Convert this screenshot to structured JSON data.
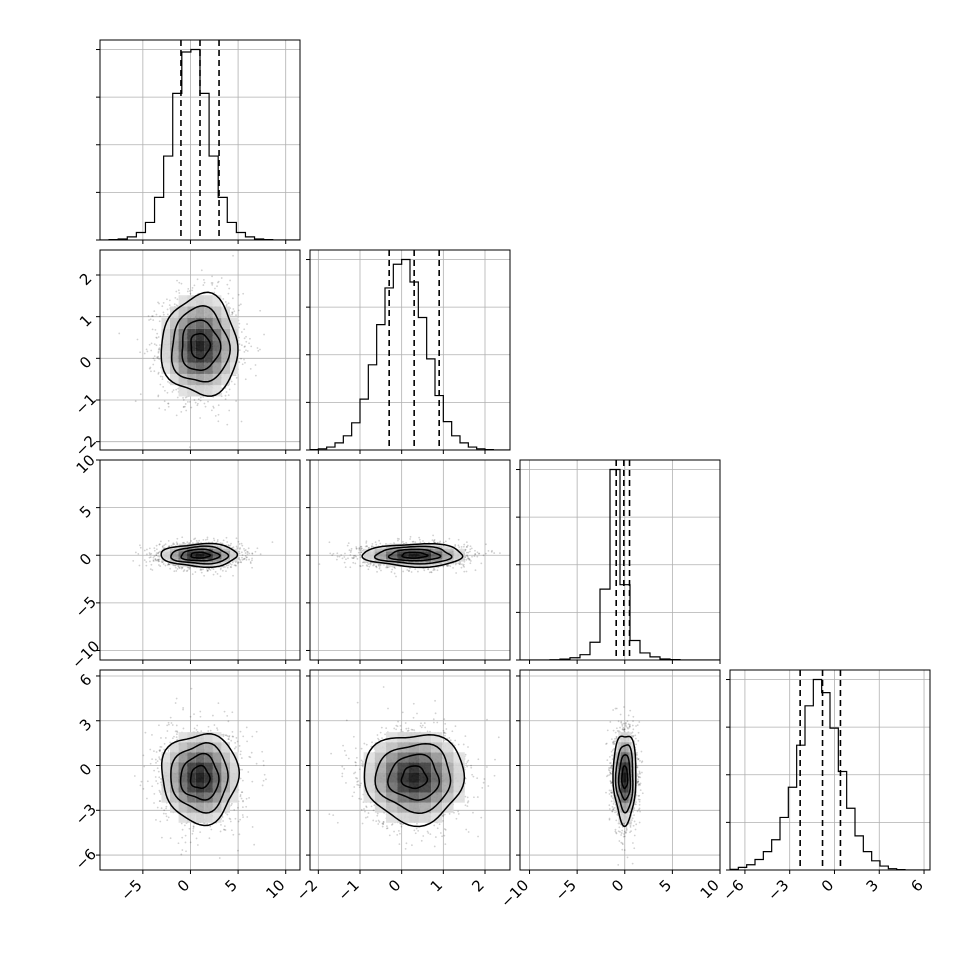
{
  "chart_data": {
    "type": "corner",
    "title": "",
    "dims": [
      {
        "range": [
          -9.5,
          11.5
        ],
        "ticks": [
          -5,
          0,
          5,
          10
        ],
        "tick_labels": [
          "−5",
          "0",
          "5",
          "10"
        ],
        "mean": 1.0,
        "sd": 2.0,
        "quantiles": [
          -1.0,
          1.0,
          3.0
        ],
        "hist_bins": [
          -9.5,
          11.5,
          22
        ],
        "hist": [
          0.0,
          0.3,
          0.8,
          2.5,
          6,
          14,
          34,
          67,
          117,
          150,
          152,
          117,
          67,
          34,
          14,
          6,
          2.5,
          0.8,
          0.3,
          0.0,
          0.0,
          0.0
        ]
      },
      {
        "range": [
          -2.2,
          2.6
        ],
        "ticks": [
          -2,
          -1,
          0,
          1,
          2
        ],
        "tick_labels": [
          "−2",
          "−1",
          "0",
          "1",
          "2"
        ],
        "mean": 0.3,
        "sd": 0.6,
        "quantiles": [
          -0.3,
          0.3,
          0.9
        ],
        "hist_bins": [
          -2.2,
          2.6,
          24
        ],
        "hist": [
          0.3,
          1.0,
          2.5,
          6,
          12,
          23,
          43,
          72,
          106,
          137,
          157,
          161,
          142,
          112,
          77,
          46,
          24,
          12,
          6,
          2.5,
          1.0,
          0.3,
          0.0,
          0.0
        ]
      },
      {
        "range": [
          -11.0,
          10.0
        ],
        "ticks": [
          -10,
          -5,
          0,
          5,
          10
        ],
        "tick_labels": [
          "−10",
          "−5",
          "0",
          "5",
          "10"
        ],
        "mean": 0.0,
        "sd": 0.6,
        "quantiles": [
          -0.9,
          -0.1,
          0.5
        ],
        "hist_bins": [
          -11.0,
          10.0,
          20
        ],
        "hist": [
          0,
          0,
          0,
          0.3,
          1.0,
          2.5,
          6,
          20,
          80,
          215,
          85,
          22,
          8,
          3.5,
          1.2,
          0.4,
          0,
          0,
          0,
          0
        ]
      },
      {
        "range": [
          -7.0,
          6.4
        ],
        "ticks": [
          -6,
          -3,
          0,
          3,
          6
        ],
        "tick_labels": [
          "−6",
          "−3",
          "0",
          "3",
          "6"
        ],
        "mean": -0.8,
        "sd": 1.5,
        "quantiles": [
          -2.3,
          -0.8,
          0.4
        ],
        "hist_bins": [
          -7.0,
          6.4,
          24
        ],
        "hist": [
          0.5,
          2,
          4,
          8,
          14,
          23,
          40,
          63,
          95,
          125,
          145,
          135,
          108,
          75,
          47,
          26,
          14,
          7,
          3,
          1,
          0.3,
          0.0,
          0.0,
          0.0
        ]
      }
    ],
    "pairs": [
      {
        "row": 1,
        "col": 0,
        "rho": 0.0
      },
      {
        "row": 2,
        "col": 0,
        "rho": 0.0
      },
      {
        "row": 2,
        "col": 1,
        "rho": 0.0
      },
      {
        "row": 3,
        "col": 0,
        "rho": 0.0
      },
      {
        "row": 3,
        "col": 1,
        "rho": 0.0
      },
      {
        "row": 3,
        "col": 2,
        "rho": 0.0
      }
    ],
    "contour_sigmas": [
      0.5,
      1.0,
      1.5,
      2.0
    ],
    "grid": true,
    "n_samples": 1800
  }
}
